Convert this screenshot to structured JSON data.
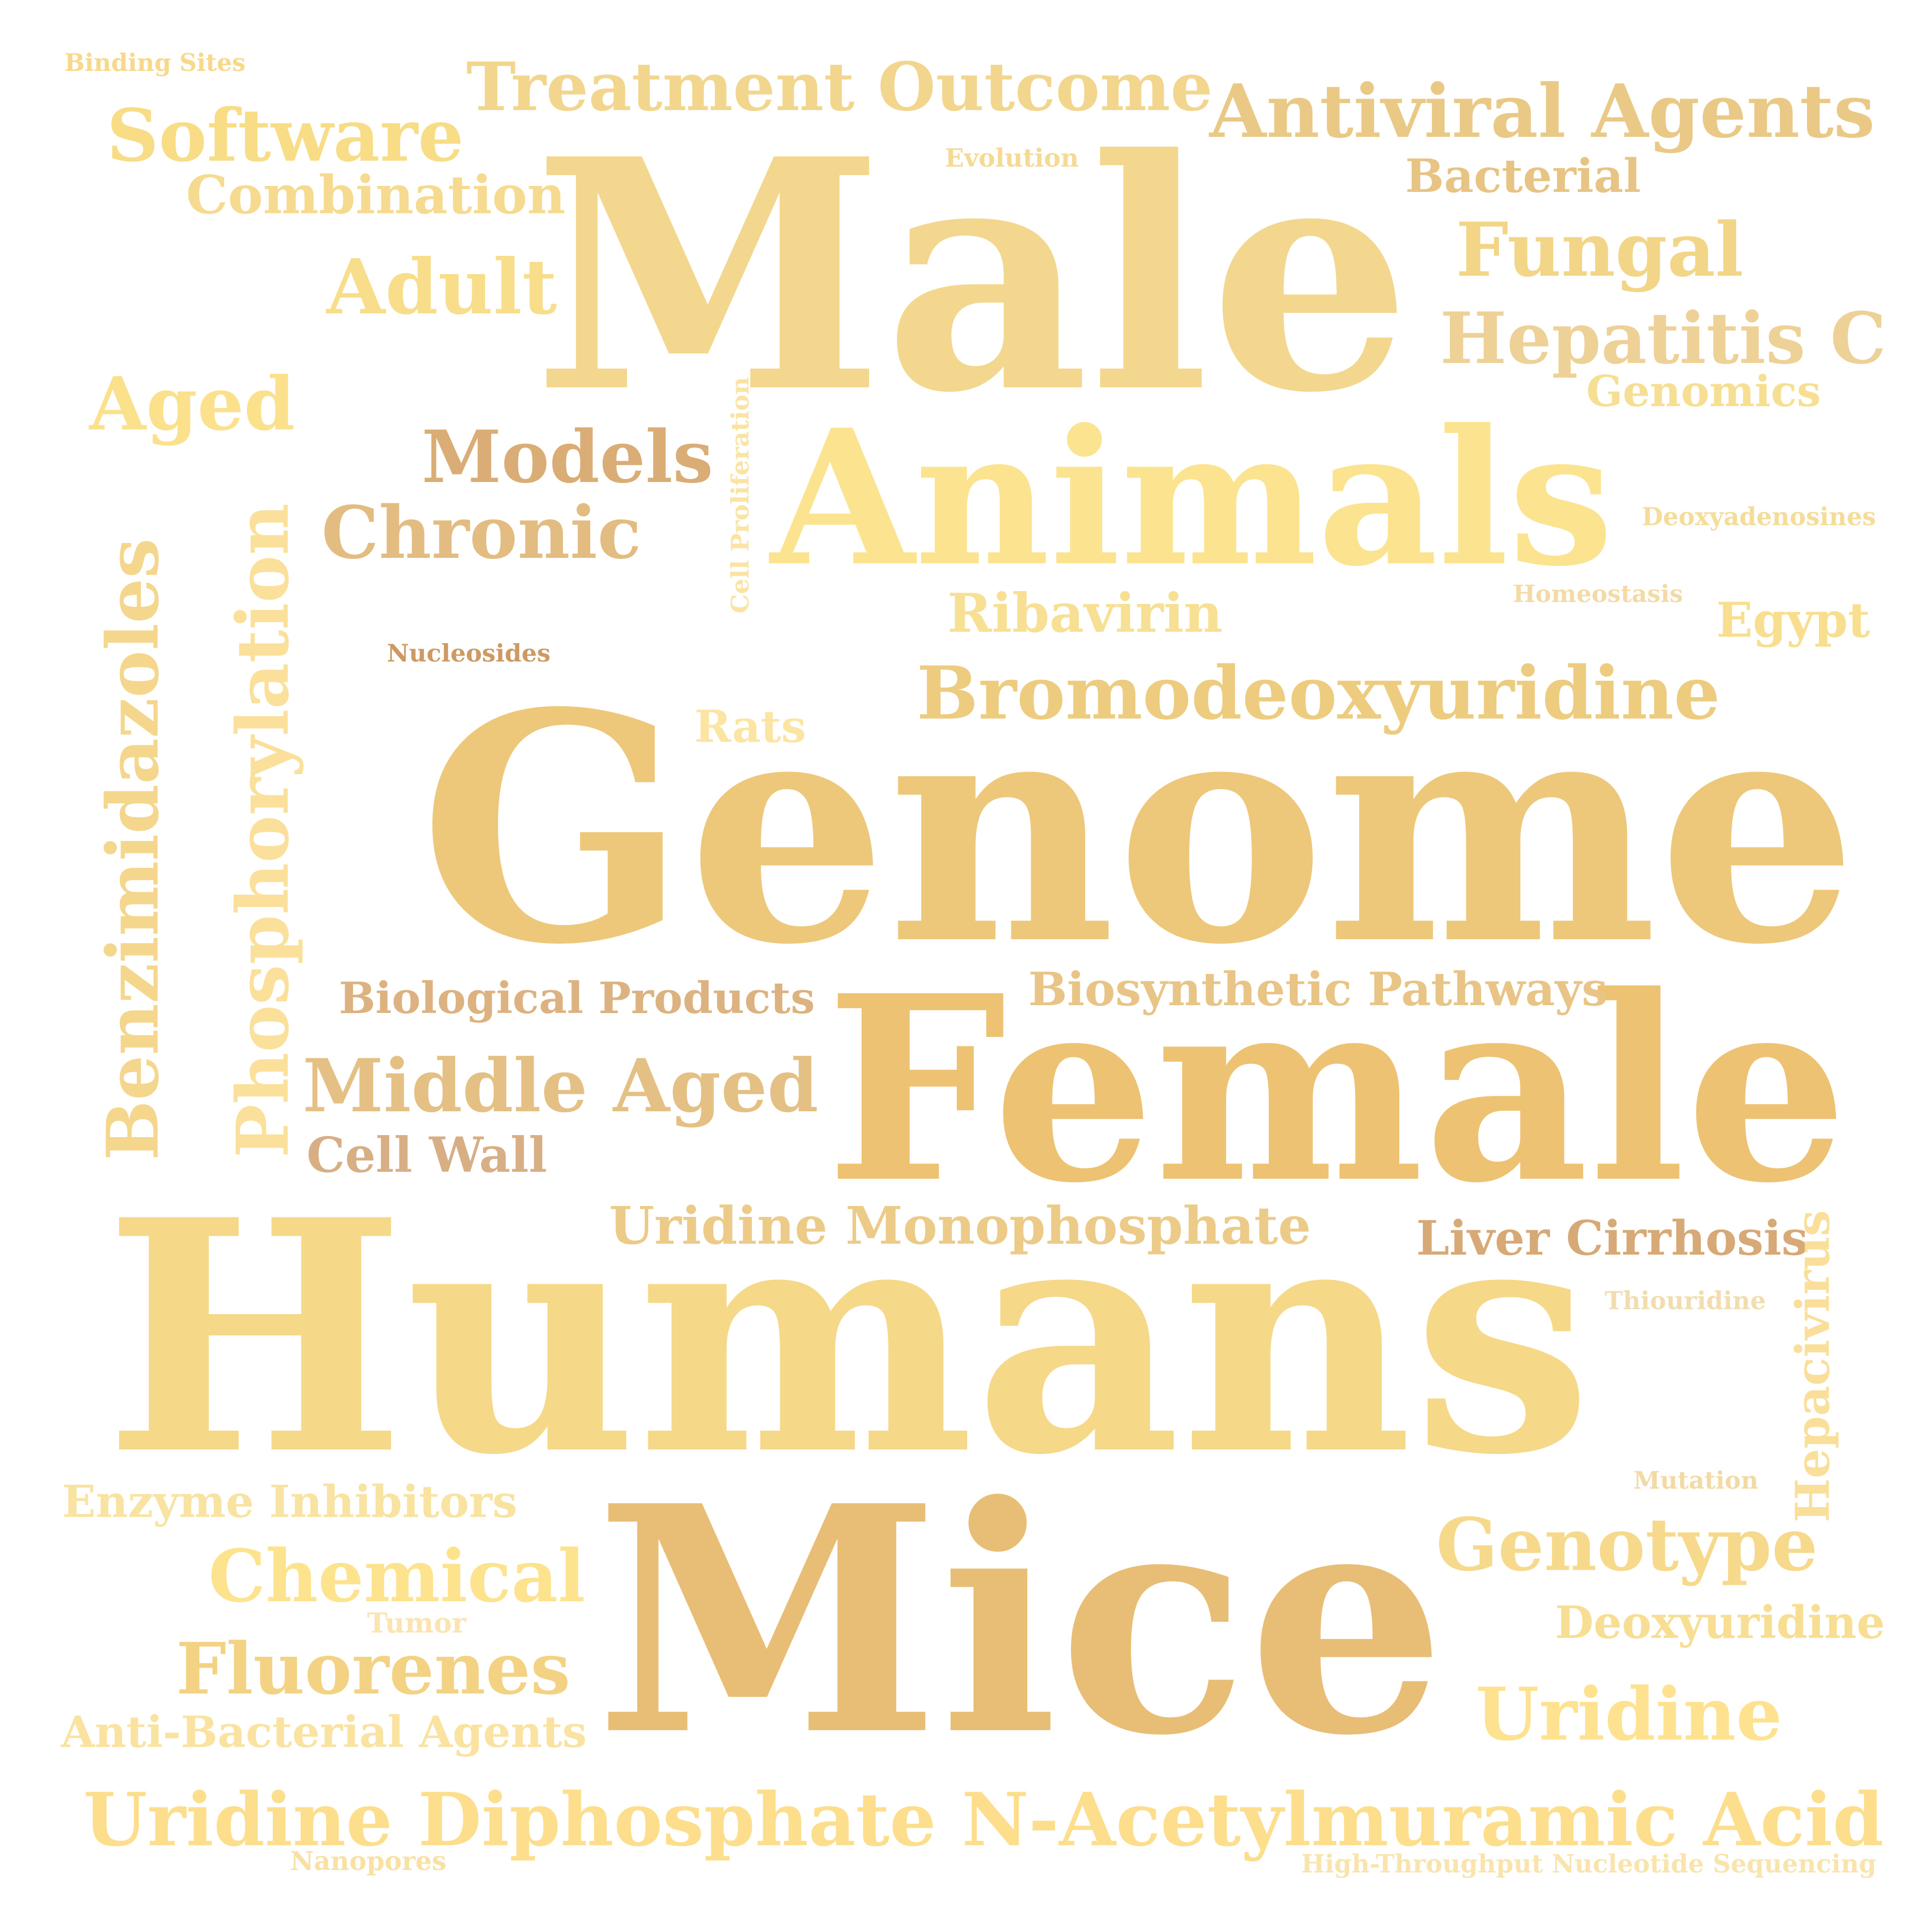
{
  "words": [
    {
      "text": "Male",
      "color": "#F3D78E"
    },
    {
      "text": "Animals",
      "color": "#FCE38F"
    },
    {
      "text": "Genome",
      "color": "#EEC87A"
    },
    {
      "text": "Female",
      "color": "#EDC273"
    },
    {
      "text": "Humans",
      "color": "#F6D889"
    },
    {
      "text": "Mice",
      "color": "#E8BE76"
    },
    {
      "text": "Treatment Outcome",
      "color": "#F3D68E"
    },
    {
      "text": "Antiviral Agents",
      "color": "#E9C985"
    },
    {
      "text": "Software",
      "color": "#F8DC86"
    },
    {
      "text": "Combination",
      "color": "#F5DA8F"
    },
    {
      "text": "Bacterial",
      "color": "#E7C483"
    },
    {
      "text": "Fungal",
      "color": "#F2D587"
    },
    {
      "text": "Hepatitis C",
      "color": "#EED196"
    },
    {
      "text": "Genomics",
      "color": "#F6DF93"
    },
    {
      "text": "Adult",
      "color": "#F8DD8B"
    },
    {
      "text": "Aged",
      "color": "#FCE18D"
    },
    {
      "text": "Models",
      "color": "#D9AD75"
    },
    {
      "text": "Chronic",
      "color": "#E3BC81"
    },
    {
      "text": "Bromodeoxyuridine",
      "color": "#EDCB7F"
    },
    {
      "text": "Ribavirin",
      "color": "#F7E093"
    },
    {
      "text": "Egypt",
      "color": "#F8DE8F"
    },
    {
      "text": "Biological Products",
      "color": "#DDB281"
    },
    {
      "text": "Biosynthetic Pathways",
      "color": "#E8C587"
    },
    {
      "text": "Middle Aged",
      "color": "#E5C084"
    },
    {
      "text": "Cell Wall",
      "color": "#D8AE84"
    },
    {
      "text": "Uridine Monophosphate",
      "color": "#EBCB87"
    },
    {
      "text": "Liver Cirrhosis",
      "color": "#D6A977"
    },
    {
      "text": "Enzyme Inhibitors",
      "color": "#F9E3A3"
    },
    {
      "text": "Chemical",
      "color": "#FEE38F"
    },
    {
      "text": "Genotype",
      "color": "#F6D98B"
    },
    {
      "text": "Deoxyuridine",
      "color": "#F8DE93"
    },
    {
      "text": "Fluorenes",
      "color": "#F3D383"
    },
    {
      "text": "Uridine",
      "color": "#FEE28F"
    },
    {
      "text": "Anti-Bacterial Agents",
      "color": "#FAE3A1"
    },
    {
      "text": "Uridine Diphosphate N-Acetylmuramic Acid",
      "color": "#FCDE8C"
    },
    {
      "text": "Binding Sites",
      "color": "#F8D88B"
    },
    {
      "text": "Evolution",
      "color": "#F5DA96"
    },
    {
      "text": "Deoxyadenosines",
      "color": "#F6DC99"
    },
    {
      "text": "Homeostasis",
      "color": "#F4DAA6"
    },
    {
      "text": "Nucleosides",
      "color": "#CC9A62"
    },
    {
      "text": "Rats",
      "color": "#FCE4A3"
    },
    {
      "text": "Thiouridine",
      "color": "#F1DDB0"
    },
    {
      "text": "Mutation",
      "color": "#F3DAA5"
    },
    {
      "text": "Tumor",
      "color": "#FBE4B0"
    },
    {
      "text": "Nanopores",
      "color": "#F9E1A6"
    },
    {
      "text": "High-Throughput Nucleotide Sequencing",
      "color": "#FAE4AE"
    },
    {
      "text": "Benzimidazoles",
      "color": "#F4D68D"
    },
    {
      "text": "Phosphorylation",
      "color": "#FAE09A"
    },
    {
      "text": "Cell Proliferation",
      "color": "#FAE3A3"
    },
    {
      "text": "Hepacivirus",
      "color": "#F9DF9A"
    }
  ]
}
